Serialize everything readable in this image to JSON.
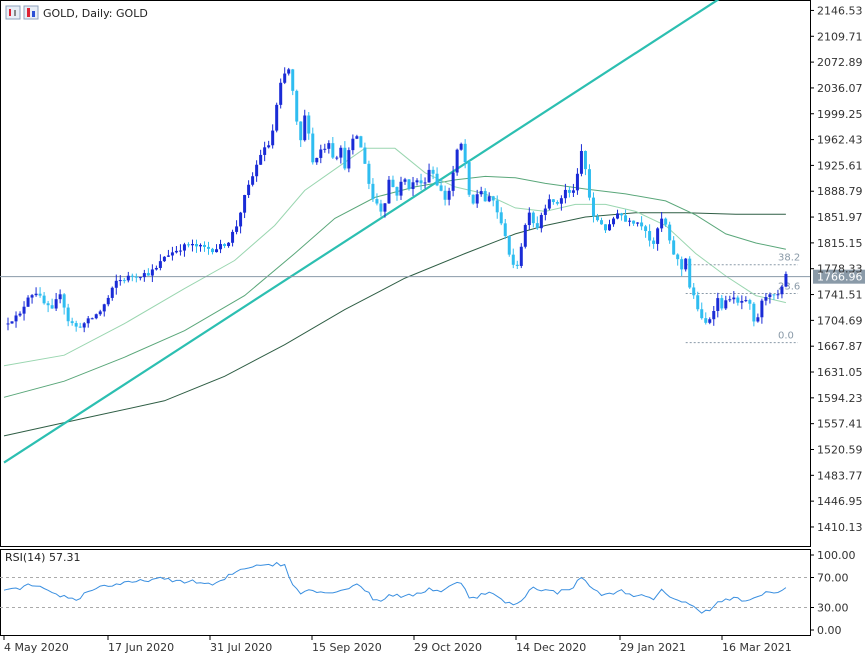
{
  "colors": {
    "bull": "#1a2bd6",
    "bear": "#2fbdf0",
    "trendline": "#2cbfb1",
    "ma_fast": "#9ad6b0",
    "ma_mid": "#5aa77a",
    "ma_slow": "#2f5e45",
    "rsi": "#3a8fe0",
    "grid": "#d9d9d9",
    "axis_text": "#333333",
    "price_tag_bg": "#8a9aa8",
    "fib": "#8a9aa8"
  },
  "chart_data": [
    {
      "type": "candlestick",
      "title": "GOLD, Daily:  GOLD",
      "y_ticks": [
        "2146.53",
        "2109.71",
        "2072.89",
        "2036.07",
        "1999.25",
        "1962.43",
        "1925.61",
        "1888.79",
        "1851.97",
        "1815.15",
        "1778.33",
        "1741.51",
        "1704.69",
        "1667.87",
        "1631.05",
        "1594.23",
        "1557.41",
        "1520.59",
        "1483.77",
        "1446.95",
        "1410.13"
      ],
      "ylim": [
        1383,
        2160
      ],
      "x_ticks": [
        "4 May 2020",
        "17 Jun 2020",
        "31 Jul 2020",
        "15 Sep 2020",
        "29 Oct 2020",
        "14 Dec 2020",
        "29 Jan 2021",
        "16 Mar 2021"
      ],
      "current_price": {
        "label": "1766.96",
        "value": 1766.96
      },
      "fib_levels": [
        {
          "label": "38.2",
          "value": 1784
        },
        {
          "label": "23.6",
          "value": 1743
        },
        {
          "label": "0.0",
          "value": 1673
        }
      ],
      "trendline": {
        "start": [
          0,
          1502
        ],
        "end": [
          238,
          1943
        ]
      },
      "close_path": [
        [
          0,
          1700
        ],
        [
          4,
          1707
        ],
        [
          8,
          1712
        ],
        [
          12,
          1740
        ],
        [
          16,
          1745
        ],
        [
          20,
          1728
        ],
        [
          24,
          1718
        ],
        [
          28,
          1745
        ],
        [
          32,
          1705
        ],
        [
          36,
          1695
        ],
        [
          40,
          1700
        ],
        [
          44,
          1708
        ],
        [
          48,
          1718
        ],
        [
          52,
          1736
        ],
        [
          56,
          1760
        ],
        [
          60,
          1764
        ],
        [
          64,
          1768
        ],
        [
          68,
          1770
        ],
        [
          72,
          1772
        ],
        [
          76,
          1778
        ],
        [
          80,
          1796
        ],
        [
          84,
          1802
        ],
        [
          88,
          1808
        ],
        [
          92,
          1812
        ],
        [
          96,
          1810
        ],
        [
          100,
          1808
        ],
        [
          104,
          1806
        ],
        [
          108,
          1810
        ],
        [
          112,
          1818
        ],
        [
          116,
          1840
        ],
        [
          120,
          1880
        ],
        [
          124,
          1910
        ],
        [
          128,
          1942
        ],
        [
          132,
          1955
        ],
        [
          134,
          1975
        ],
        [
          136,
          2010
        ],
        [
          138,
          2040
        ],
        [
          140,
          2055
        ],
        [
          142,
          2062
        ],
        [
          144,
          2030
        ],
        [
          146,
          1985
        ],
        [
          148,
          1960
        ],
        [
          150,
          1995
        ],
        [
          152,
          1975
        ],
        [
          154,
          1930
        ],
        [
          156,
          1938
        ],
        [
          158,
          1948
        ],
        [
          160,
          1952
        ],
        [
          162,
          1960
        ],
        [
          164,
          1940
        ],
        [
          166,
          1940
        ],
        [
          168,
          1948
        ],
        [
          170,
          1925
        ],
        [
          172,
          1945
        ],
        [
          174,
          1960
        ],
        [
          176,
          1968
        ],
        [
          178,
          1950
        ],
        [
          180,
          1930
        ],
        [
          182,
          1900
        ],
        [
          184,
          1878
        ],
        [
          186,
          1872
        ],
        [
          188,
          1862
        ],
        [
          190,
          1875
        ],
        [
          192,
          1905
        ],
        [
          194,
          1895
        ],
        [
          196,
          1885
        ],
        [
          198,
          1900
        ],
        [
          200,
          1905
        ],
        [
          202,
          1895
        ],
        [
          204,
          1900
        ],
        [
          206,
          1905
        ],
        [
          208,
          1898
        ],
        [
          210,
          1905
        ],
        [
          212,
          1920
        ],
        [
          214,
          1915
        ],
        [
          216,
          1900
        ],
        [
          218,
          1888
        ],
        [
          220,
          1878
        ],
        [
          222,
          1890
        ],
        [
          224,
          1915
        ],
        [
          226,
          1945
        ],
        [
          228,
          1955
        ],
        [
          230,
          1930
        ],
        [
          232,
          1880
        ],
        [
          234,
          1870
        ],
        [
          236,
          1885
        ],
        [
          238,
          1890
        ],
        [
          240,
          1875
        ],
        [
          242,
          1878
        ],
        [
          244,
          1875
        ],
        [
          246,
          1860
        ],
        [
          248,
          1840
        ],
        [
          250,
          1828
        ],
        [
          252,
          1800
        ],
        [
          254,
          1780
        ],
        [
          256,
          1785
        ],
        [
          258,
          1812
        ],
        [
          260,
          1840
        ],
        [
          262,
          1862
        ],
        [
          264,
          1845
        ],
        [
          266,
          1838
        ],
        [
          268,
          1856
        ],
        [
          270,
          1868
        ],
        [
          272,
          1880
        ],
        [
          274,
          1870
        ],
        [
          276,
          1872
        ],
        [
          278,
          1880
        ],
        [
          280,
          1890
        ],
        [
          282,
          1885
        ],
        [
          284,
          1892
        ],
        [
          286,
          1910
        ],
        [
          288,
          1945
        ],
        [
          290,
          1920
        ],
        [
          292,
          1880
        ],
        [
          294,
          1850
        ],
        [
          296,
          1848
        ],
        [
          298,
          1843
        ],
        [
          300,
          1835
        ],
        [
          302,
          1838
        ],
        [
          304,
          1850
        ],
        [
          306,
          1860
        ],
        [
          308,
          1855
        ],
        [
          310,
          1846
        ],
        [
          312,
          1850
        ],
        [
          314,
          1846
        ],
        [
          316,
          1845
        ],
        [
          318,
          1842
        ],
        [
          320,
          1835
        ],
        [
          322,
          1820
        ],
        [
          324,
          1810
        ],
        [
          326,
          1835
        ],
        [
          328,
          1848
        ],
        [
          330,
          1840
        ],
        [
          332,
          1815
        ],
        [
          334,
          1800
        ],
        [
          336,
          1790
        ],
        [
          338,
          1778
        ],
        [
          340,
          1795
        ],
        [
          342,
          1752
        ],
        [
          344,
          1738
        ],
        [
          346,
          1722
        ],
        [
          348,
          1705
        ],
        [
          350,
          1700
        ],
        [
          352,
          1708
        ],
        [
          354,
          1722
        ],
        [
          356,
          1735
        ],
        [
          358,
          1725
        ],
        [
          360,
          1730
        ],
        [
          362,
          1738
        ],
        [
          364,
          1734
        ],
        [
          366,
          1728
        ],
        [
          368,
          1732
        ],
        [
          370,
          1730
        ],
        [
          372,
          1725
        ],
        [
          374,
          1700
        ],
        [
          376,
          1710
        ],
        [
          378,
          1730
        ],
        [
          380,
          1740
        ],
        [
          382,
          1745
        ],
        [
          384,
          1738
        ],
        [
          386,
          1740
        ],
        [
          388,
          1750
        ],
        [
          390,
          1767
        ]
      ],
      "ma_fast_path": [
        [
          0,
          1640
        ],
        [
          30,
          1655
        ],
        [
          60,
          1700
        ],
        [
          90,
          1750
        ],
        [
          115,
          1790
        ],
        [
          135,
          1840
        ],
        [
          150,
          1890
        ],
        [
          165,
          1920
        ],
        [
          180,
          1950
        ],
        [
          195,
          1950
        ],
        [
          210,
          1915
        ],
        [
          225,
          1895
        ],
        [
          240,
          1885
        ],
        [
          255,
          1865
        ],
        [
          270,
          1860
        ],
        [
          285,
          1870
        ],
        [
          300,
          1870
        ],
        [
          315,
          1860
        ],
        [
          330,
          1840
        ],
        [
          345,
          1800
        ],
        [
          360,
          1768
        ],
        [
          375,
          1740
        ],
        [
          390,
          1730
        ]
      ],
      "ma_mid_path": [
        [
          0,
          1595
        ],
        [
          30,
          1618
        ],
        [
          60,
          1652
        ],
        [
          90,
          1690
        ],
        [
          120,
          1740
        ],
        [
          145,
          1800
        ],
        [
          165,
          1850
        ],
        [
          185,
          1880
        ],
        [
          205,
          1895
        ],
        [
          225,
          1905
        ],
        [
          240,
          1910
        ],
        [
          255,
          1908
        ],
        [
          270,
          1900
        ],
        [
          290,
          1892
        ],
        [
          310,
          1885
        ],
        [
          330,
          1875
        ],
        [
          345,
          1855
        ],
        [
          360,
          1828
        ],
        [
          375,
          1815
        ],
        [
          390,
          1806
        ]
      ],
      "ma_slow_path": [
        [
          0,
          1540
        ],
        [
          40,
          1565
        ],
        [
          80,
          1590
        ],
        [
          110,
          1625
        ],
        [
          140,
          1670
        ],
        [
          170,
          1720
        ],
        [
          200,
          1765
        ],
        [
          230,
          1800
        ],
        [
          255,
          1828
        ],
        [
          270,
          1840
        ],
        [
          290,
          1852
        ],
        [
          315,
          1858
        ],
        [
          340,
          1858
        ],
        [
          365,
          1856
        ],
        [
          390,
          1856
        ]
      ]
    },
    {
      "type": "line",
      "title": "RSI(14) 57.31",
      "y_ticks": [
        "100.00",
        "70.00",
        "30.00",
        "0.00"
      ],
      "levels": [
        70,
        30
      ],
      "ylim": [
        0,
        100
      ],
      "values": [
        [
          0,
          52
        ],
        [
          6,
          54
        ],
        [
          12,
          60
        ],
        [
          18,
          56
        ],
        [
          24,
          48
        ],
        [
          30,
          45
        ],
        [
          36,
          40
        ],
        [
          42,
          52
        ],
        [
          48,
          58
        ],
        [
          54,
          60
        ],
        [
          60,
          62
        ],
        [
          66,
          64
        ],
        [
          72,
          67
        ],
        [
          78,
          68
        ],
        [
          84,
          66
        ],
        [
          90,
          65
        ],
        [
          96,
          64
        ],
        [
          100,
          62
        ],
        [
          104,
          60
        ],
        [
          108,
          64
        ],
        [
          112,
          72
        ],
        [
          116,
          78
        ],
        [
          120,
          83
        ],
        [
          124,
          85
        ],
        [
          128,
          88
        ],
        [
          132,
          87
        ],
        [
          136,
          88
        ],
        [
          140,
          86
        ],
        [
          144,
          60
        ],
        [
          148,
          50
        ],
        [
          152,
          56
        ],
        [
          156,
          50
        ],
        [
          160,
          52
        ],
        [
          164,
          48
        ],
        [
          168,
          55
        ],
        [
          172,
          56
        ],
        [
          176,
          62
        ],
        [
          180,
          54
        ],
        [
          184,
          42
        ],
        [
          188,
          38
        ],
        [
          192,
          48
        ],
        [
          196,
          46
        ],
        [
          200,
          44
        ],
        [
          206,
          48
        ],
        [
          212,
          55
        ],
        [
          218,
          52
        ],
        [
          224,
          60
        ],
        [
          228,
          64
        ],
        [
          232,
          45
        ],
        [
          236,
          44
        ],
        [
          240,
          50
        ],
        [
          244,
          48
        ],
        [
          248,
          40
        ],
        [
          252,
          35
        ],
        [
          256,
          34
        ],
        [
          260,
          46
        ],
        [
          264,
          58
        ],
        [
          268,
          54
        ],
        [
          272,
          52
        ],
        [
          276,
          50
        ],
        [
          280,
          54
        ],
        [
          284,
          58
        ],
        [
          288,
          70
        ],
        [
          292,
          60
        ],
        [
          296,
          50
        ],
        [
          300,
          46
        ],
        [
          304,
          50
        ],
        [
          308,
          52
        ],
        [
          312,
          48
        ],
        [
          316,
          46
        ],
        [
          320,
          44
        ],
        [
          324,
          40
        ],
        [
          328,
          52
        ],
        [
          332,
          46
        ],
        [
          336,
          40
        ],
        [
          340,
          36
        ],
        [
          344,
          30
        ],
        [
          348,
          25
        ],
        [
          352,
          28
        ],
        [
          356,
          36
        ],
        [
          360,
          40
        ],
        [
          364,
          42
        ],
        [
          368,
          40
        ],
        [
          372,
          38
        ],
        [
          376,
          44
        ],
        [
          380,
          52
        ],
        [
          384,
          48
        ],
        [
          388,
          52
        ],
        [
          390,
          57
        ]
      ]
    }
  ]
}
